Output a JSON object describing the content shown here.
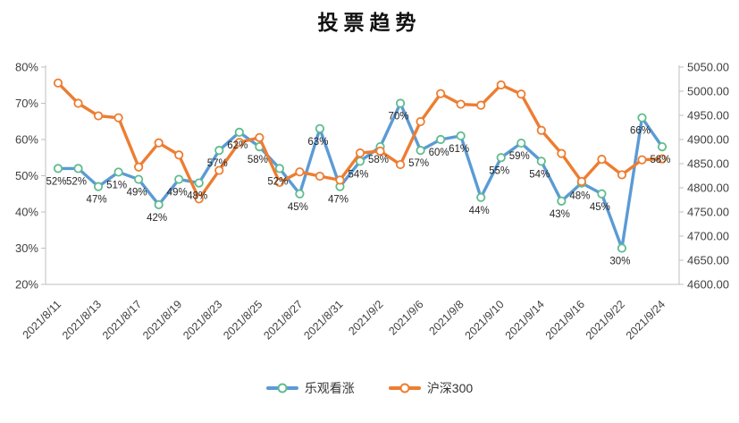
{
  "title": "投票趋势",
  "legend": {
    "items": [
      {
        "label": "乐观看涨",
        "line_color": "#5B9BD5",
        "marker_color": "#5FBC8F"
      },
      {
        "label": "沪深300",
        "line_color": "#ED7D31",
        "marker_color": "#ED7D31"
      }
    ]
  },
  "colors": {
    "axis_line": "#BFBFBF",
    "axis_text": "#404040",
    "data_label_text": "#262626",
    "background": "#FFFFFF"
  },
  "chart_data": {
    "type": "line",
    "title": "投票趋势",
    "n_points": 31,
    "x_tick_labels": [
      "2021/8/11",
      "2021/8/13",
      "2021/8/17",
      "2021/8/19",
      "2021/8/23",
      "2021/8/25",
      "2021/8/27",
      "2021/8/31",
      "2021/9/2",
      "2021/9/6",
      "2021/9/8",
      "2021/9/10",
      "2021/9/14",
      "2021/9/16",
      "2021/9/22",
      "2021/9/24"
    ],
    "x_tick_indices": [
      0,
      2,
      4,
      6,
      8,
      10,
      12,
      14,
      16,
      18,
      20,
      22,
      24,
      26,
      28,
      30
    ],
    "left_axis": {
      "min": 20,
      "max": 80,
      "ticks": [
        "80%",
        "70%",
        "60%",
        "50%",
        "40%",
        "30%",
        "20%"
      ],
      "tick_values": [
        80,
        70,
        60,
        50,
        40,
        30,
        20
      ]
    },
    "right_axis": {
      "min": 4600,
      "max": 5050,
      "ticks": [
        "5050.00",
        "5000.00",
        "4950.00",
        "4900.00",
        "4850.00",
        "4800.00",
        "4750.00",
        "4700.00",
        "4650.00",
        "4600.00"
      ],
      "tick_values": [
        5050,
        5000,
        4950,
        4900,
        4850,
        4800,
        4750,
        4700,
        4650,
        4600
      ]
    },
    "legend_position": "bottom",
    "grid": false,
    "series": [
      {
        "name": "乐观看涨",
        "axis": "left",
        "color": "#5B9BD5",
        "marker_color": "#5FBC8F",
        "values": [
          52,
          52,
          47,
          51,
          49,
          42,
          49,
          48,
          57,
          62,
          58,
          52,
          45,
          63,
          47,
          54,
          58,
          70,
          57,
          60,
          61,
          44,
          55,
          59,
          54,
          43,
          48,
          45,
          30,
          66,
          58
        ],
        "labels": [
          "52%",
          "52%",
          "47%",
          "51%",
          "49%",
          "42%",
          "49%",
          "48%",
          "57%",
          "62%",
          "58%",
          "52%",
          "45%",
          "63%",
          "47%",
          "54%",
          "58%",
          "70%",
          "57%",
          "60%",
          "61%",
          "44%",
          "55%",
          "59%",
          "54%",
          "43%",
          "48%",
          "45%",
          "30%",
          "66%",
          "58%"
        ]
      },
      {
        "name": "沪深300",
        "axis": "right",
        "color": "#ED7D31",
        "marker_color": "#ED7D31",
        "values": [
          5017,
          4975,
          4949,
          4945,
          4843,
          4893,
          4868,
          4777,
          4836,
          4894,
          4904,
          4811,
          4833,
          4824,
          4816,
          4872,
          4876,
          4848,
          4937,
          4995,
          4973,
          4971,
          5013,
          4994,
          4919,
          4871,
          4813,
          4859,
          4827,
          4858,
          4860
        ],
        "labels": null
      }
    ]
  }
}
